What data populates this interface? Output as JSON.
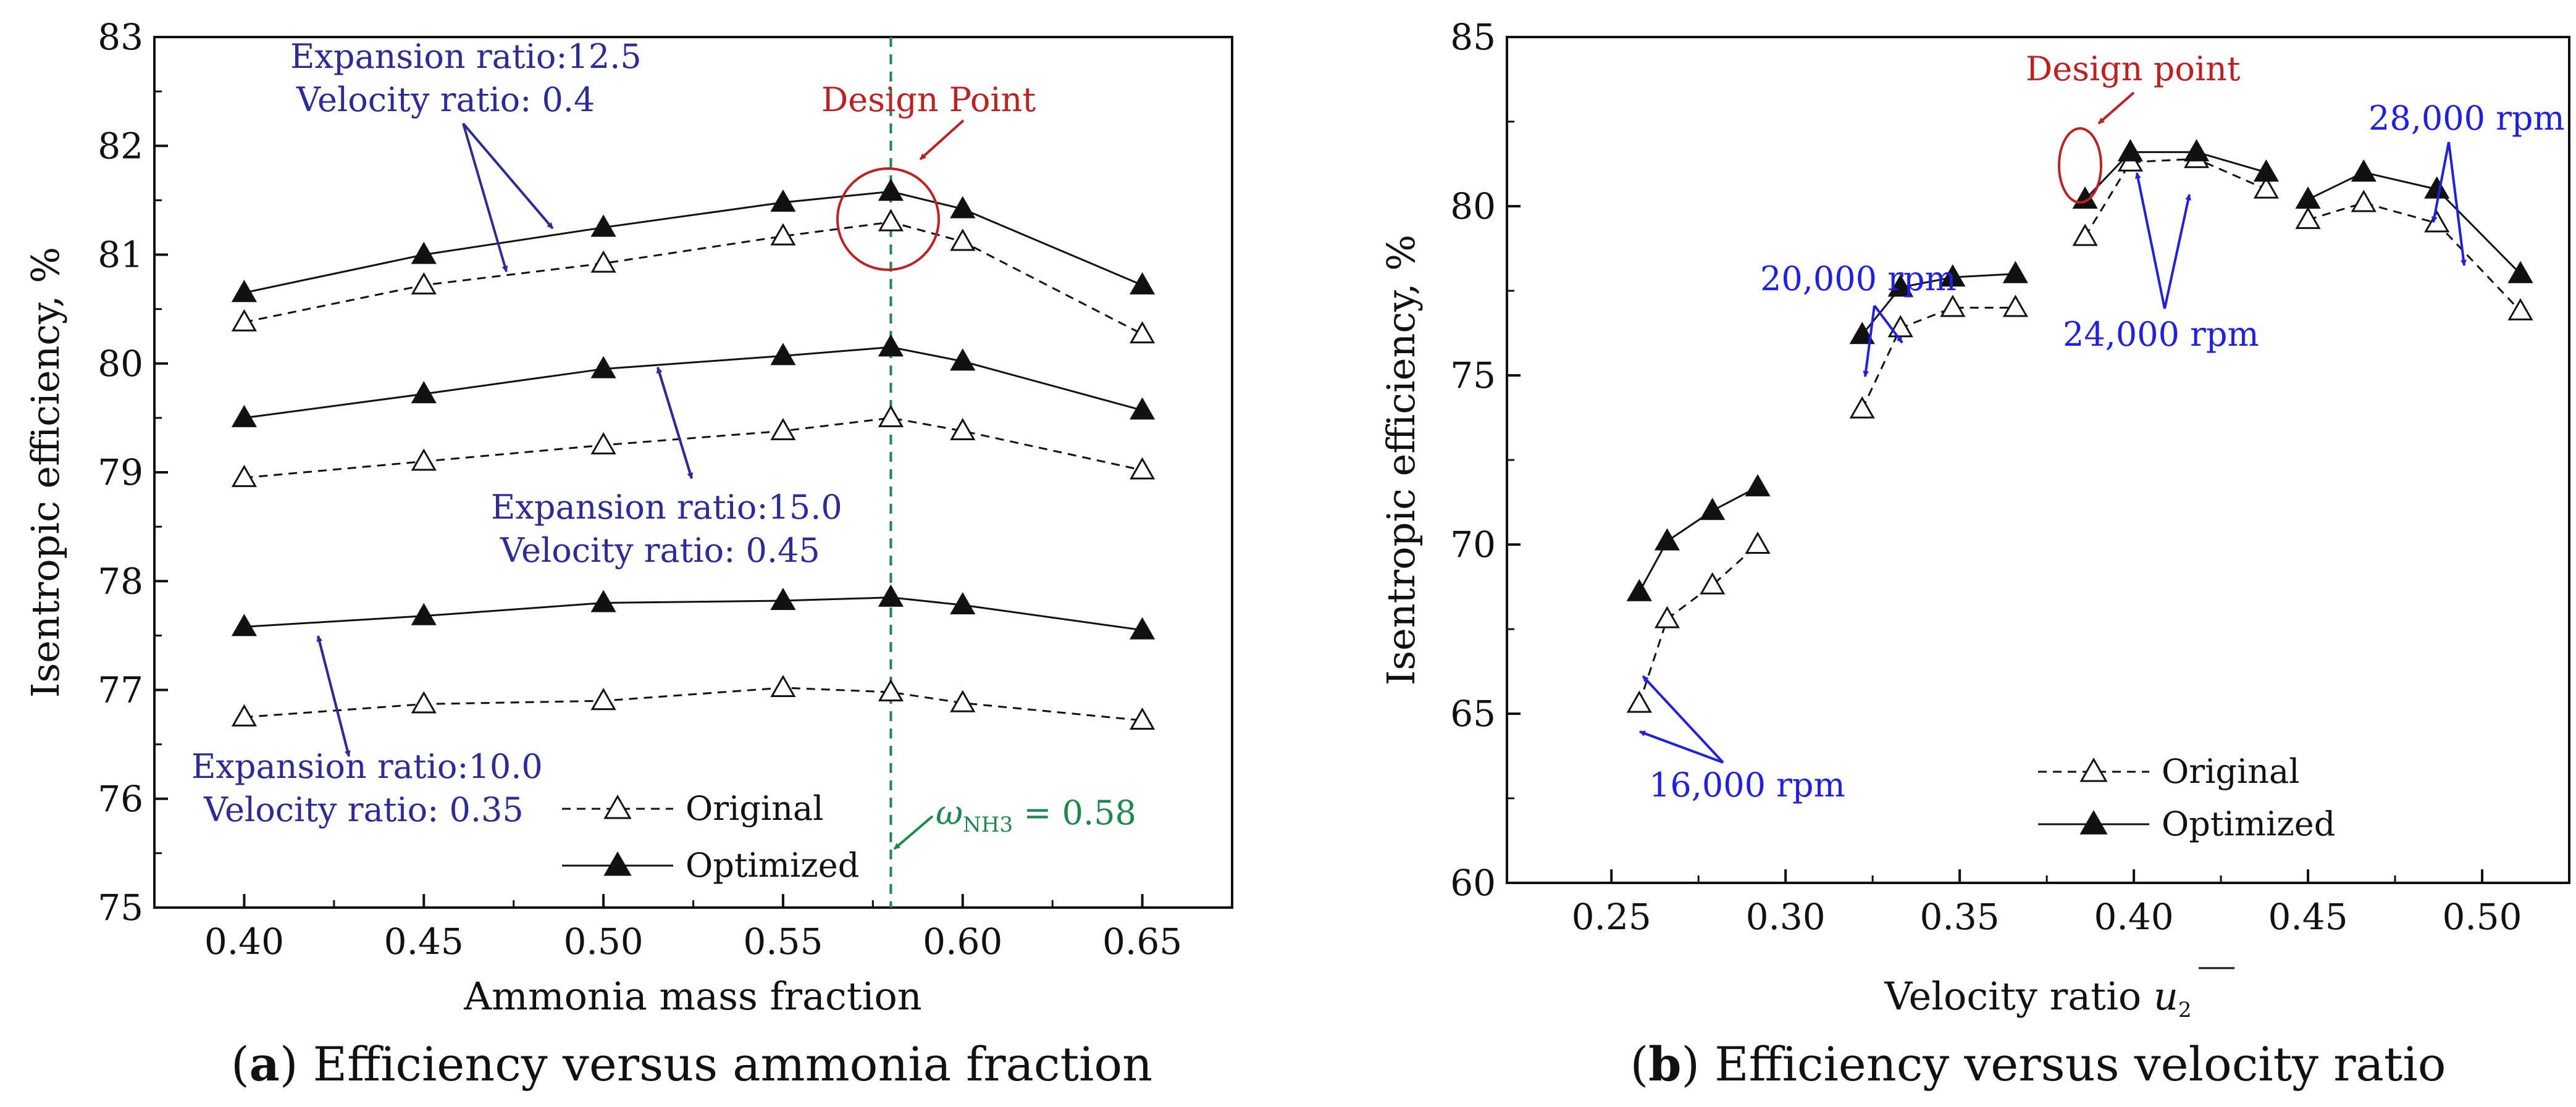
{
  "colors": {
    "annotation_a": "#2b2b9a",
    "annotation_b": "#1f1fe6",
    "design": "#c02020",
    "green": "#1a8a4a"
  },
  "panels": {
    "a": {
      "caption_letter": "a",
      "caption_text": "Efficiency versus ammonia fraction"
    },
    "b": {
      "caption_letter": "b",
      "caption_text": "Efficiency versus velocity ratio"
    }
  },
  "annotations_a": {
    "design": "Design Point",
    "er125": "Expansion ratio:12.5",
    "vr04": "Velocity ratio: 0.4",
    "er150": "Expansion ratio:15.0",
    "vr045": "Velocity ratio: 0.45",
    "er100": "Expansion ratio:10.0",
    "vr035": "Velocity ratio: 0.35",
    "omega_sym": "ω",
    "omega_sub": "NH3",
    "omega_val": " = 0.58"
  },
  "annotations_b": {
    "design": "Design point",
    "r20": "20,000 rpm",
    "r24": "24,000 rpm",
    "r28": "28,000 rpm",
    "r16": "16,000 rpm"
  },
  "chart_data": [
    {
      "type": "line",
      "title": "",
      "xlabel": "Ammonia mass fraction",
      "ylabel": "Isentropic efficiency, %",
      "xlim": [
        0.375,
        0.675
      ],
      "ylim": [
        75,
        83
      ],
      "xticks": [
        0.4,
        0.45,
        0.5,
        0.55,
        0.6,
        0.65
      ],
      "xticklabels": [
        "0.40",
        "0.45",
        "0.50",
        "0.55",
        "0.60",
        "0.65"
      ],
      "yticks": [
        75,
        76,
        77,
        78,
        79,
        80,
        81,
        82,
        83
      ],
      "yticklabels": [
        "75",
        "76",
        "77",
        "78",
        "79",
        "80",
        "81",
        "82",
        "83"
      ],
      "x": [
        0.4,
        0.45,
        0.5,
        0.55,
        0.58,
        0.6,
        0.65
      ],
      "reference_line_x": 0.58,
      "legend": [
        "Original",
        "Optimized"
      ],
      "legend_position": "bottom-center",
      "series": [
        {
          "name": "Original",
          "group": "Expansion ratio 12.5",
          "values": [
            80.38,
            80.72,
            80.92,
            81.17,
            81.3,
            81.12,
            80.27
          ]
        },
        {
          "name": "Optimized",
          "group": "Expansion ratio 12.5",
          "values": [
            80.65,
            81.0,
            81.25,
            81.48,
            81.58,
            81.42,
            80.72
          ]
        },
        {
          "name": "Original",
          "group": "Expansion ratio 15.0",
          "values": [
            78.95,
            79.1,
            79.25,
            79.38,
            79.5,
            79.38,
            79.02
          ]
        },
        {
          "name": "Optimized",
          "group": "Expansion ratio 15.0",
          "values": [
            79.5,
            79.72,
            79.95,
            80.07,
            80.15,
            80.02,
            79.57
          ]
        },
        {
          "name": "Original",
          "group": "Expansion ratio 10.0",
          "values": [
            76.75,
            76.87,
            76.9,
            77.02,
            76.98,
            76.88,
            76.72
          ]
        },
        {
          "name": "Optimized",
          "group": "Expansion ratio 10.0",
          "values": [
            77.58,
            77.68,
            77.8,
            77.82,
            77.85,
            77.78,
            77.55
          ]
        }
      ]
    },
    {
      "type": "line",
      "title": "",
      "xlabel": "Velocity ratio",
      "xlabel_symbol": "u",
      "xlabel_subscript": "2",
      "ylabel": "Isentropic efficiency, %",
      "xlim": [
        0.22,
        0.525
      ],
      "ylim": [
        60,
        85
      ],
      "xticks": [
        0.25,
        0.3,
        0.35,
        0.4,
        0.45,
        0.5
      ],
      "xticklabels": [
        "0.25",
        "0.30",
        "0.35",
        "0.40",
        "0.45",
        "0.50"
      ],
      "yticks": [
        60,
        65,
        70,
        75,
        80,
        85
      ],
      "yticklabels": [
        "60",
        "65",
        "70",
        "75",
        "80",
        "85"
      ],
      "legend": [
        "Original",
        "Optimized"
      ],
      "legend_position": "bottom-center",
      "series": [
        {
          "name": "Original",
          "group": "16,000 rpm",
          "x": [
            0.258,
            0.266,
            0.279,
            0.292
          ],
          "values": [
            65.3,
            67.8,
            68.8,
            70.0
          ]
        },
        {
          "name": "Optimized",
          "group": "16,000 rpm",
          "x": [
            0.258,
            0.266,
            0.279,
            0.292
          ],
          "values": [
            68.6,
            70.1,
            71.0,
            71.7
          ]
        },
        {
          "name": "Original",
          "group": "20,000 rpm",
          "x": [
            0.322,
            0.333,
            0.348,
            0.366
          ],
          "values": [
            74.0,
            76.4,
            77.0,
            77.0
          ]
        },
        {
          "name": "Optimized",
          "group": "20,000 rpm",
          "x": [
            0.322,
            0.333,
            0.348,
            0.366
          ],
          "values": [
            76.2,
            77.6,
            77.9,
            78.0
          ]
        },
        {
          "name": "Original",
          "group": "24,000 rpm",
          "x": [
            0.386,
            0.399,
            0.418,
            0.438
          ],
          "values": [
            79.1,
            81.3,
            81.4,
            80.5
          ]
        },
        {
          "name": "Optimized",
          "group": "24,000 rpm",
          "x": [
            0.386,
            0.399,
            0.418,
            0.438
          ],
          "values": [
            80.2,
            81.6,
            81.6,
            81.0
          ]
        },
        {
          "name": "Original",
          "group": "28,000 rpm",
          "x": [
            0.45,
            0.466,
            0.487,
            0.511
          ],
          "values": [
            79.6,
            80.1,
            79.5,
            76.9
          ]
        },
        {
          "name": "Optimized",
          "group": "28,000 rpm",
          "x": [
            0.45,
            0.466,
            0.487,
            0.511
          ],
          "values": [
            80.2,
            81.0,
            80.5,
            78.0
          ]
        }
      ]
    }
  ]
}
